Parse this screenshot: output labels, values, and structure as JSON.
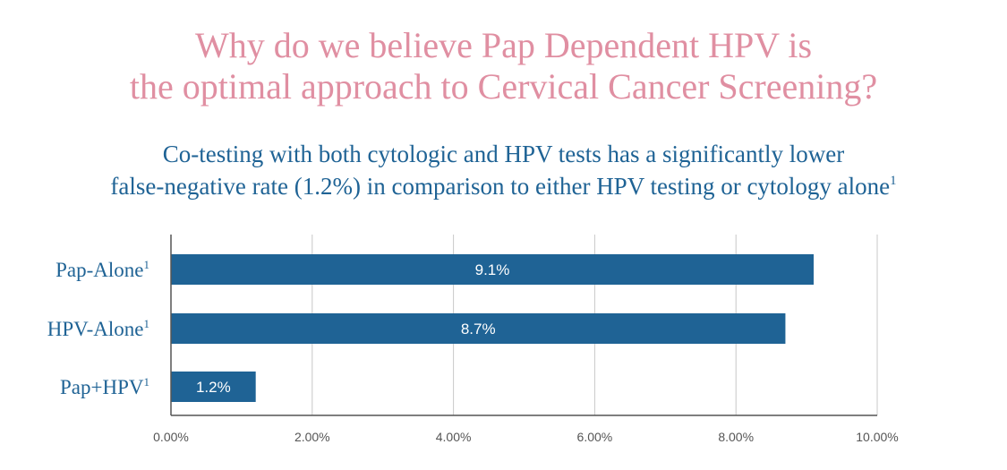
{
  "title_line1": "Why do we believe Pap Dependent HPV is",
  "title_line2": "the optimal approach to Cervical Cancer Screening?",
  "subtitle_line1": "Co-testing with both cytologic and HPV tests has a significantly lower",
  "subtitle_line2": "false-negative rate (1.2%) in comparison to either HPV testing or cytology alone",
  "subtitle_footnote": "1",
  "colors": {
    "title": "#e08fa2",
    "text": "#1f6395",
    "bar": "#1f6395",
    "grid": "#c8c8c8",
    "axis": "#555555"
  },
  "chart_data": {
    "type": "bar",
    "orientation": "horizontal",
    "categories": [
      "Pap-Alone",
      "HPV-Alone",
      "Pap+HPV"
    ],
    "category_footnote": "1",
    "values": [
      9.1,
      8.7,
      1.2
    ],
    "data_labels": [
      "9.1%",
      "8.7%",
      "1.2%"
    ],
    "xlim": [
      0,
      10
    ],
    "xticks": [
      0,
      2,
      4,
      6,
      8,
      10
    ],
    "xtick_labels": [
      "0.00%",
      "2.00%",
      "4.00%",
      "6.00%",
      "8.00%",
      "10.00%"
    ],
    "grid": true,
    "unit": "%"
  }
}
